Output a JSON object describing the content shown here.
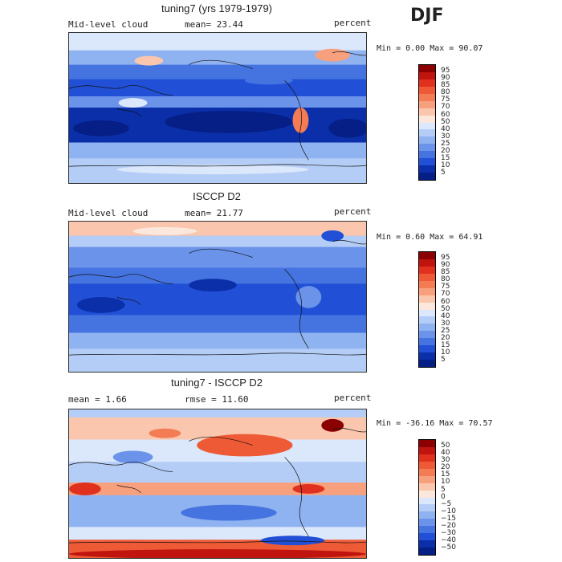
{
  "season": "DJF",
  "panels": [
    {
      "title": "tuning7 (yrs 1979-1979)",
      "left_label": "Mid-level cloud",
      "center_label": "mean=  23.44",
      "units": "percent",
      "minmax": "Min =   0.00 Max =  90.07",
      "colorbar": {
        "labels": [
          "95",
          "90",
          "85",
          "80",
          "75",
          "70",
          "60",
          "50",
          "40",
          "30",
          "25",
          "20",
          "15",
          "10",
          "5"
        ],
        "colors": [
          "#8b0000",
          "#c0140f",
          "#e0301e",
          "#ee5a36",
          "#f47c55",
          "#f7a07d",
          "#fac7ae",
          "#fbe7db",
          "#dbe7fb",
          "#b4cdf6",
          "#8fb2f0",
          "#6a93e9",
          "#4574e0",
          "#2150d6",
          "#0a2fa8",
          "#061f86"
        ]
      }
    },
    {
      "title": "ISCCP D2",
      "left_label": "Mid-level cloud",
      "center_label": "mean=  21.77",
      "units": "percent",
      "minmax": "Min =   0.60 Max =  64.91",
      "colorbar": {
        "labels": [
          "95",
          "90",
          "85",
          "80",
          "75",
          "70",
          "60",
          "50",
          "40",
          "30",
          "25",
          "20",
          "15",
          "10",
          "5"
        ],
        "colors": [
          "#8b0000",
          "#c0140f",
          "#e0301e",
          "#ee5a36",
          "#f47c55",
          "#f7a07d",
          "#fac7ae",
          "#fbe7db",
          "#dbe7fb",
          "#b4cdf6",
          "#8fb2f0",
          "#6a93e9",
          "#4574e0",
          "#2150d6",
          "#0a2fa8",
          "#061f86"
        ]
      }
    },
    {
      "title": "tuning7 - ISCCP D2",
      "left_label": "mean =    1.66",
      "center_label": "rmse =  11.60",
      "units": "percent",
      "minmax": "Min = -36.16 Max =  70.57",
      "colorbar": {
        "labels": [
          "50",
          "40",
          "30",
          "20",
          "15",
          "10",
          "5",
          "0",
          "−5",
          "−10",
          "−15",
          "−20",
          "−30",
          "−40",
          "−50"
        ],
        "colors": [
          "#8b0000",
          "#c0140f",
          "#e0301e",
          "#ee5a36",
          "#f47c55",
          "#f7a07d",
          "#fac7ae",
          "#fbe7db",
          "#dbe7fb",
          "#b4cdf6",
          "#8fb2f0",
          "#6a93e9",
          "#4574e0",
          "#2150d6",
          "#0a2fa8",
          "#061f86"
        ]
      }
    }
  ]
}
